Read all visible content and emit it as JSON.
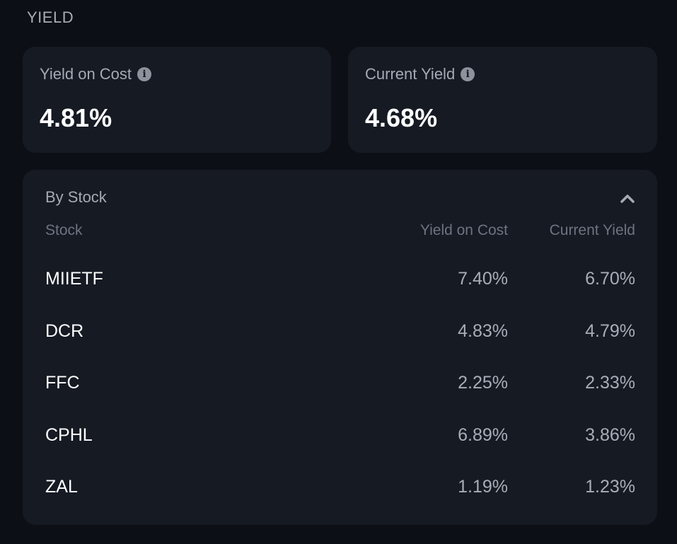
{
  "section": {
    "title": "YIELD"
  },
  "summary": {
    "yield_on_cost": {
      "label": "Yield on Cost",
      "value": "4.81%",
      "icon": "info-icon"
    },
    "current_yield": {
      "label": "Current Yield",
      "value": "4.68%",
      "icon": "info-icon"
    }
  },
  "by_stock": {
    "title": "By Stock",
    "toggle_icon": "chevron-up-icon",
    "columns": [
      "Stock",
      "Yield on Cost",
      "Current Yield"
    ],
    "rows": [
      {
        "stock": "MIIETF",
        "yield_on_cost": "7.40%",
        "current_yield": "6.70%"
      },
      {
        "stock": "DCR",
        "yield_on_cost": "4.83%",
        "current_yield": "4.79%"
      },
      {
        "stock": "FFC",
        "yield_on_cost": "2.25%",
        "current_yield": "2.33%"
      },
      {
        "stock": "CPHL",
        "yield_on_cost": "6.89%",
        "current_yield": "3.86%"
      },
      {
        "stock": "ZAL",
        "yield_on_cost": "1.19%",
        "current_yield": "1.23%"
      }
    ]
  },
  "colors": {
    "background": "#0c0f16",
    "card": "#151a23",
    "muted_text": "#a6aab4",
    "header_text": "#6e7380"
  }
}
